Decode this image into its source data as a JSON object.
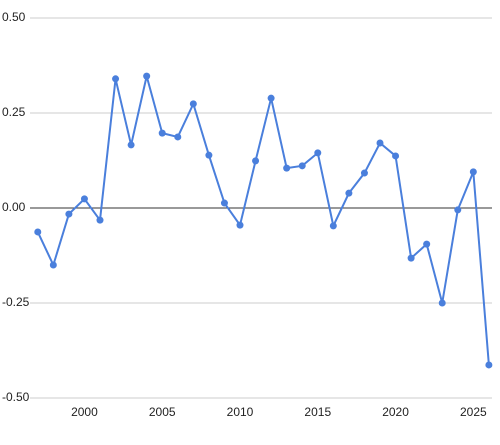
{
  "chart_data": {
    "type": "line",
    "x": [
      1997,
      1998,
      1999,
      2000,
      2001,
      2002,
      2003,
      2004,
      2005,
      2006,
      2007,
      2008,
      2009,
      2010,
      2011,
      2012,
      2013,
      2014,
      2015,
      2016,
      2017,
      2018,
      2019,
      2020,
      2021,
      2022,
      2023,
      2024,
      2025,
      2026
    ],
    "series": [
      {
        "color": "#4a7fdc",
        "values": [
          -0.063,
          -0.15,
          -0.016,
          0.024,
          -0.032,
          0.34,
          0.166,
          0.347,
          0.197,
          0.187,
          0.274,
          0.139,
          0.013,
          -0.045,
          0.124,
          0.289,
          0.105,
          0.111,
          0.145,
          -0.047,
          0.039,
          0.092,
          0.171,
          0.137,
          -0.132,
          -0.095,
          -0.25,
          -0.005,
          0.095,
          -0.413
        ]
      }
    ],
    "xlim": [
      1996.5,
      2026.2
    ],
    "xticks": [
      2000,
      2005,
      2010,
      2015,
      2020,
      2025
    ],
    "ylim": [
      -0.5,
      0.5
    ],
    "yticks": [
      {
        "value": -0.5,
        "label": "-0.50"
      },
      {
        "value": -0.25,
        "label": "-0.25"
      },
      {
        "value": 0,
        "label": "0.00"
      },
      {
        "value": 0.25,
        "label": "0.25"
      },
      {
        "value": 0.5,
        "label": "0.50"
      }
    ],
    "grid": true
  }
}
